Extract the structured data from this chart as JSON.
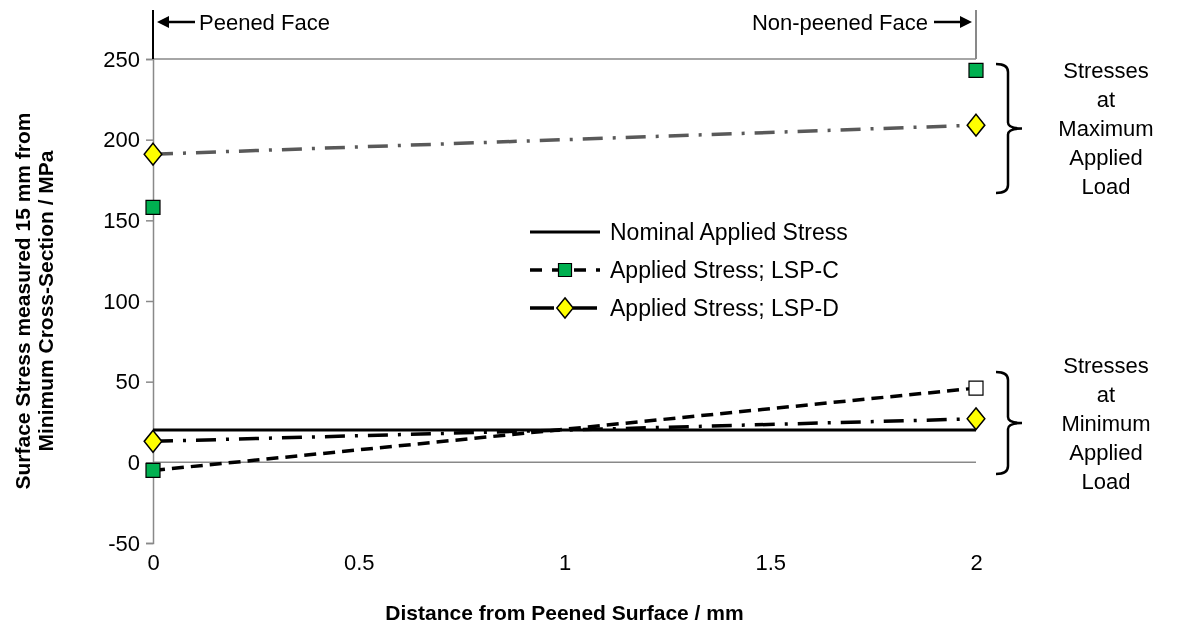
{
  "chart_data": {
    "type": "line",
    "xlabel": "Distance from Peened Surface / mm",
    "ylabel": "Surface Stress measured 15 mm from Minimum Cross-Section / MPa",
    "x": [
      0,
      2
    ],
    "xlim": [
      0,
      2
    ],
    "xticks": [
      0,
      0.5,
      1,
      1.5,
      2
    ],
    "ylim": [
      -50,
      250
    ],
    "yticks": [
      -50,
      0,
      50,
      100,
      150,
      200,
      250
    ],
    "grid": false,
    "legend": "right",
    "ref_lines": [
      {
        "axis": "y",
        "value": 0,
        "color": "#898989"
      }
    ],
    "series": [
      {
        "name": "Nominal Applied Stress",
        "color": "#000000",
        "values": [
          20,
          20
        ],
        "marker": "none",
        "line_style": "solid"
      },
      {
        "name": "Applied Stress; LSP-C",
        "color": "#000000",
        "colors": [
          "#00b050",
          "#ffffff"
        ],
        "values": [
          -5,
          46
        ],
        "marker": "square",
        "line_style": "dashed"
      },
      {
        "name": "Applied Stress; LSP-D",
        "color": "#000000",
        "colors": [
          "#ffff00",
          "#ffff00"
        ],
        "values": [
          13,
          27
        ],
        "marker": "diamond",
        "line_style": "dashdot"
      },
      {
        "type": "scatter",
        "color": "#00b050",
        "values": [
          158,
          243
        ],
        "marker": "square"
      },
      {
        "color": "#595959",
        "colors": [
          "#ffff00",
          "#ffff00"
        ],
        "values": [
          191,
          209
        ],
        "marker": "diamond",
        "line_style": "dashdot"
      }
    ],
    "annotations": [
      "Peened Face",
      "Non-peened Face",
      "Stresses at Maximum Applied Load",
      "Stresses at Minimum Applied Load"
    ]
  }
}
